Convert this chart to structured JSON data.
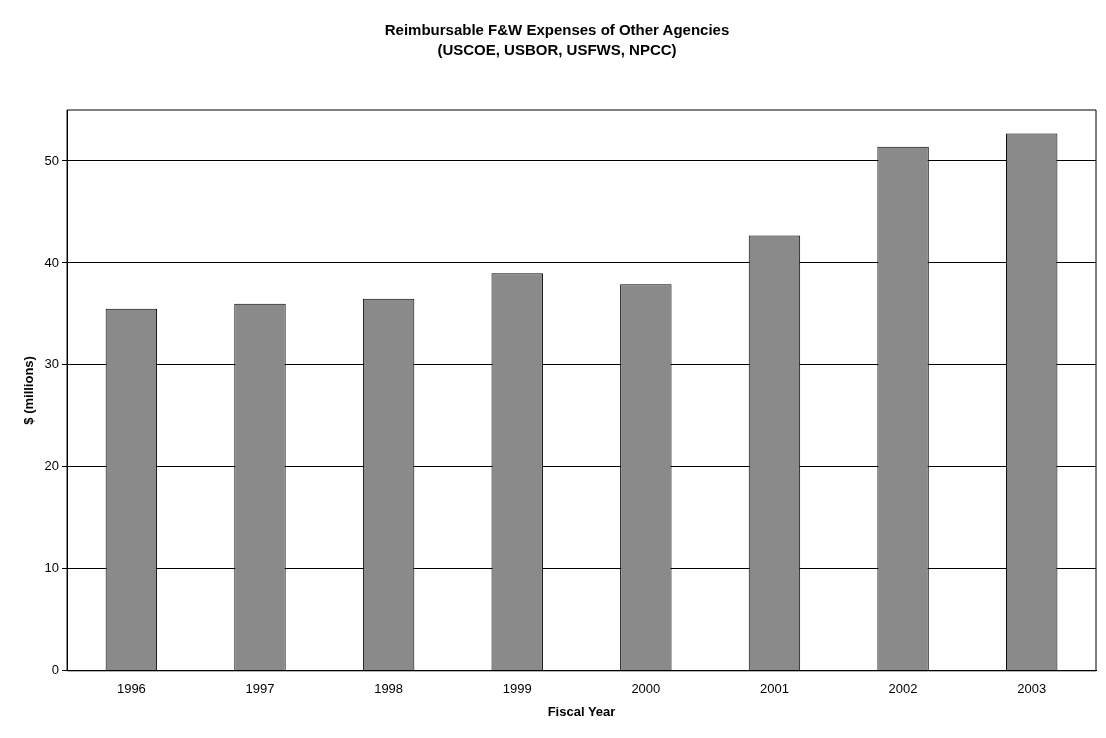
{
  "chart_data": {
    "type": "bar",
    "title": "Reimbursable F&W Expenses of Other Agencies",
    "subtitle": "(USCOE, USBOR, USFWS, NPCC)",
    "xlabel": "Fiscal Year",
    "ylabel": "$ (millions)",
    "categories": [
      "1996",
      "1997",
      "1998",
      "1999",
      "2000",
      "2001",
      "2002",
      "2003"
    ],
    "values": [
      35.5,
      36.0,
      36.5,
      39.0,
      37.9,
      42.7,
      51.4,
      52.7
    ],
    "color": "#8a8a8a",
    "ylim": [
      0,
      55
    ],
    "yticks": [
      0,
      10,
      20,
      30,
      40,
      50
    ],
    "grid": "y"
  }
}
